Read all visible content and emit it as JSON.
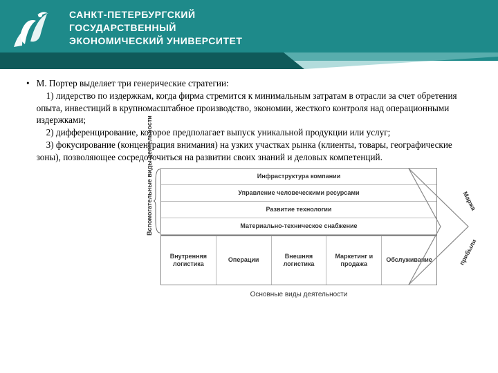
{
  "header": {
    "line1": "САНКТ-ПЕТЕРБУРГСКИЙ",
    "line2": "ГОСУДАРСТВЕННЫЙ",
    "line3": "ЭКОНОМИЧЕСКИЙ УНИВЕРСИТЕТ",
    "bg_color": "#1e8a8a",
    "accent_color": "#0f5a5a"
  },
  "bullet": {
    "lead": "М. Портер выделяет три генерические стратегии:",
    "p1": "1) лидерство по издержкам, когда фирма стремится к минимальным затратам в отрасли за счет обретения опыта, инвестиций в крупномасштабное производство, экономии, жесткого контроля над операционными издержками;",
    "p2": "2) дифференцирование, которое предполагает выпуск уникальной продукции или услуг;",
    "p3": "3) фокусирование (концентрация внимания) на узких участках рынка (клиенты, товары, географические зоны), позволяющее сосредоточиться на развитии своих знаний и деловых компетенций."
  },
  "diagram": {
    "type": "flowchart",
    "support_label": "Вспомогательные виды деятельности",
    "support_rows": [
      "Инфраструктура компании",
      "Управление человеческими ресурсами",
      "Развитие технологии",
      "Материально-техническое снабжение"
    ],
    "primary_label": "Основные виды деятельности",
    "primary_cells": [
      "Внутренняя логистика",
      "Операции",
      "Внешняя логистика",
      "Маркетинг и продажа",
      "Обслуживание"
    ],
    "margin_top": "Маржа",
    "margin_bottom": "прибыли",
    "border_color": "#888888",
    "grid_color": "#bbbbbb",
    "text_color": "#333333",
    "bg_color": "#ffffff",
    "font_size_labels": 9
  }
}
